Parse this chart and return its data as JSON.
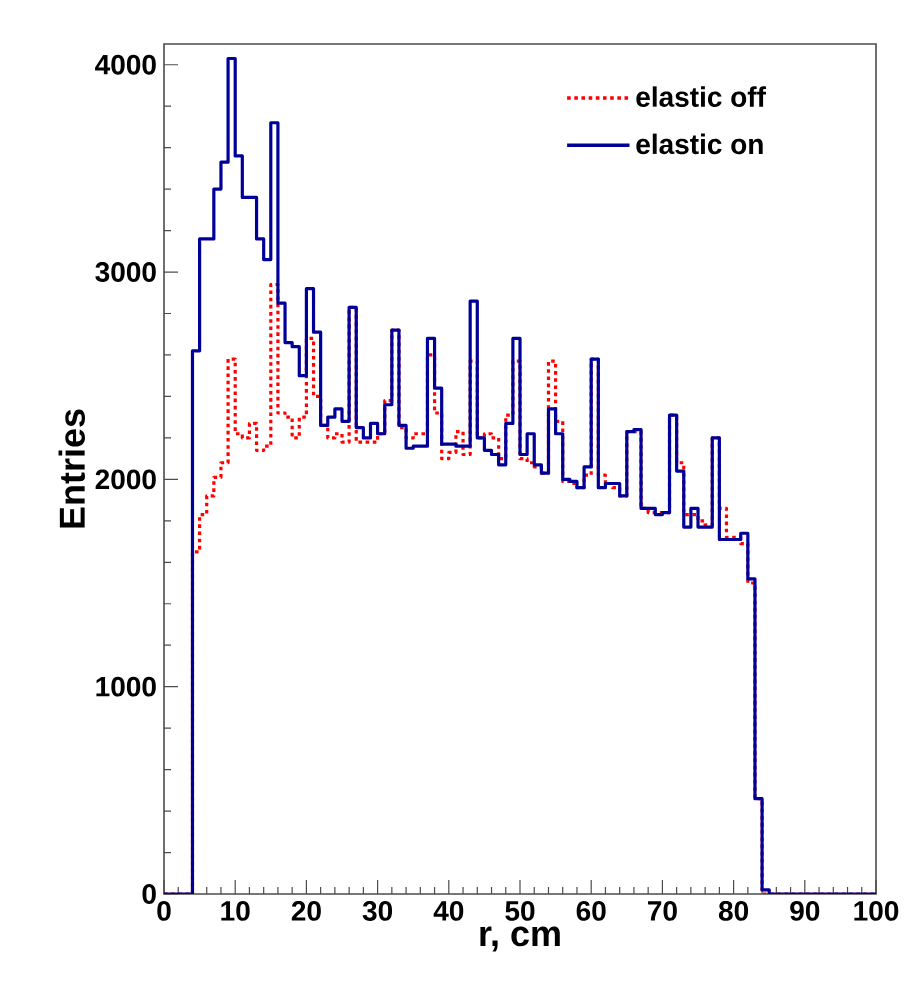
{
  "chart_data": {
    "type": "histogram",
    "xlabel": "r,  cm",
    "ylabel": "Entries",
    "bins": [
      0,
      1,
      2,
      3,
      4,
      5,
      6,
      7,
      8,
      9,
      10,
      11,
      12,
      13,
      14,
      15,
      16,
      17,
      18,
      19,
      20,
      21,
      22,
      23,
      24,
      25,
      26,
      27,
      28,
      29,
      30,
      31,
      32,
      33,
      34,
      35,
      36,
      37,
      38,
      39,
      40,
      41,
      42,
      43,
      44,
      45,
      46,
      47,
      48,
      49,
      50,
      51,
      52,
      53,
      54,
      55,
      56,
      57,
      58,
      59,
      60,
      61,
      62,
      63,
      64,
      65,
      66,
      67,
      68,
      69,
      70,
      71,
      72,
      73,
      74,
      75,
      76,
      77,
      78,
      79,
      80,
      81,
      82,
      83,
      84,
      85,
      86,
      87,
      88,
      89,
      90,
      91,
      92,
      93,
      94,
      95,
      96,
      97,
      98,
      99,
      100
    ],
    "series": [
      {
        "name": "elastic off",
        "color": "#ff0000",
        "line_style": "dotted",
        "values": [
          0,
          0,
          0,
          0,
          1650,
          1830,
          1920,
          2010,
          2080,
          2580,
          2220,
          2200,
          2270,
          2140,
          2160,
          2940,
          2320,
          2300,
          2200,
          2300,
          2680,
          2400,
          2260,
          2200,
          2220,
          2180,
          2830,
          2180,
          2180,
          2180,
          2220,
          2380,
          2720,
          2250,
          2200,
          2220,
          2220,
          2600,
          2320,
          2100,
          2130,
          2230,
          2120,
          2570,
          2200,
          2220,
          2200,
          2100,
          2310,
          2570,
          2100,
          2080,
          2060,
          2030,
          2570,
          2280,
          1990,
          1980,
          1960,
          2020,
          2580,
          2020,
          1980,
          1960,
          1920,
          2230,
          2230,
          1860,
          1840,
          1840,
          1840,
          2310,
          2080,
          1830,
          1830,
          1800,
          1780,
          2200,
          1860,
          1720,
          1720,
          1690,
          1500,
          460,
          0,
          0,
          0,
          0,
          0,
          0,
          0,
          0,
          0,
          0,
          0,
          0,
          0,
          0,
          0,
          0
        ]
      },
      {
        "name": "elastic on",
        "color": "#000099",
        "line_style": "solid",
        "values": [
          0,
          0,
          0,
          0,
          2620,
          3160,
          3160,
          3400,
          3530,
          4030,
          3560,
          3360,
          3360,
          3160,
          3060,
          3720,
          2850,
          2660,
          2640,
          2500,
          2920,
          2710,
          2260,
          2300,
          2340,
          2280,
          2830,
          2250,
          2200,
          2270,
          2220,
          2360,
          2720,
          2260,
          2150,
          2160,
          2160,
          2680,
          2440,
          2170,
          2170,
          2160,
          2160,
          2860,
          2200,
          2140,
          2120,
          2070,
          2270,
          2680,
          2120,
          2220,
          2070,
          2030,
          2340,
          2220,
          2000,
          1990,
          1960,
          2060,
          2580,
          1960,
          1980,
          1980,
          1920,
          2230,
          2240,
          1860,
          1860,
          1830,
          1840,
          2310,
          2040,
          1770,
          1860,
          1770,
          1770,
          2200,
          1710,
          1710,
          1710,
          1740,
          1520,
          460,
          20,
          0,
          0,
          0,
          0,
          0,
          0,
          0,
          0,
          0,
          0,
          0,
          0,
          0,
          0,
          0
        ]
      }
    ],
    "xlim": [
      0,
      100
    ],
    "ylim": [
      0,
      4100
    ],
    "xticks": [
      0,
      10,
      20,
      30,
      40,
      50,
      60,
      70,
      80,
      90,
      100
    ],
    "yticks": [
      0,
      1000,
      2000,
      3000,
      4000
    ],
    "grid": false,
    "legend": "top right"
  }
}
